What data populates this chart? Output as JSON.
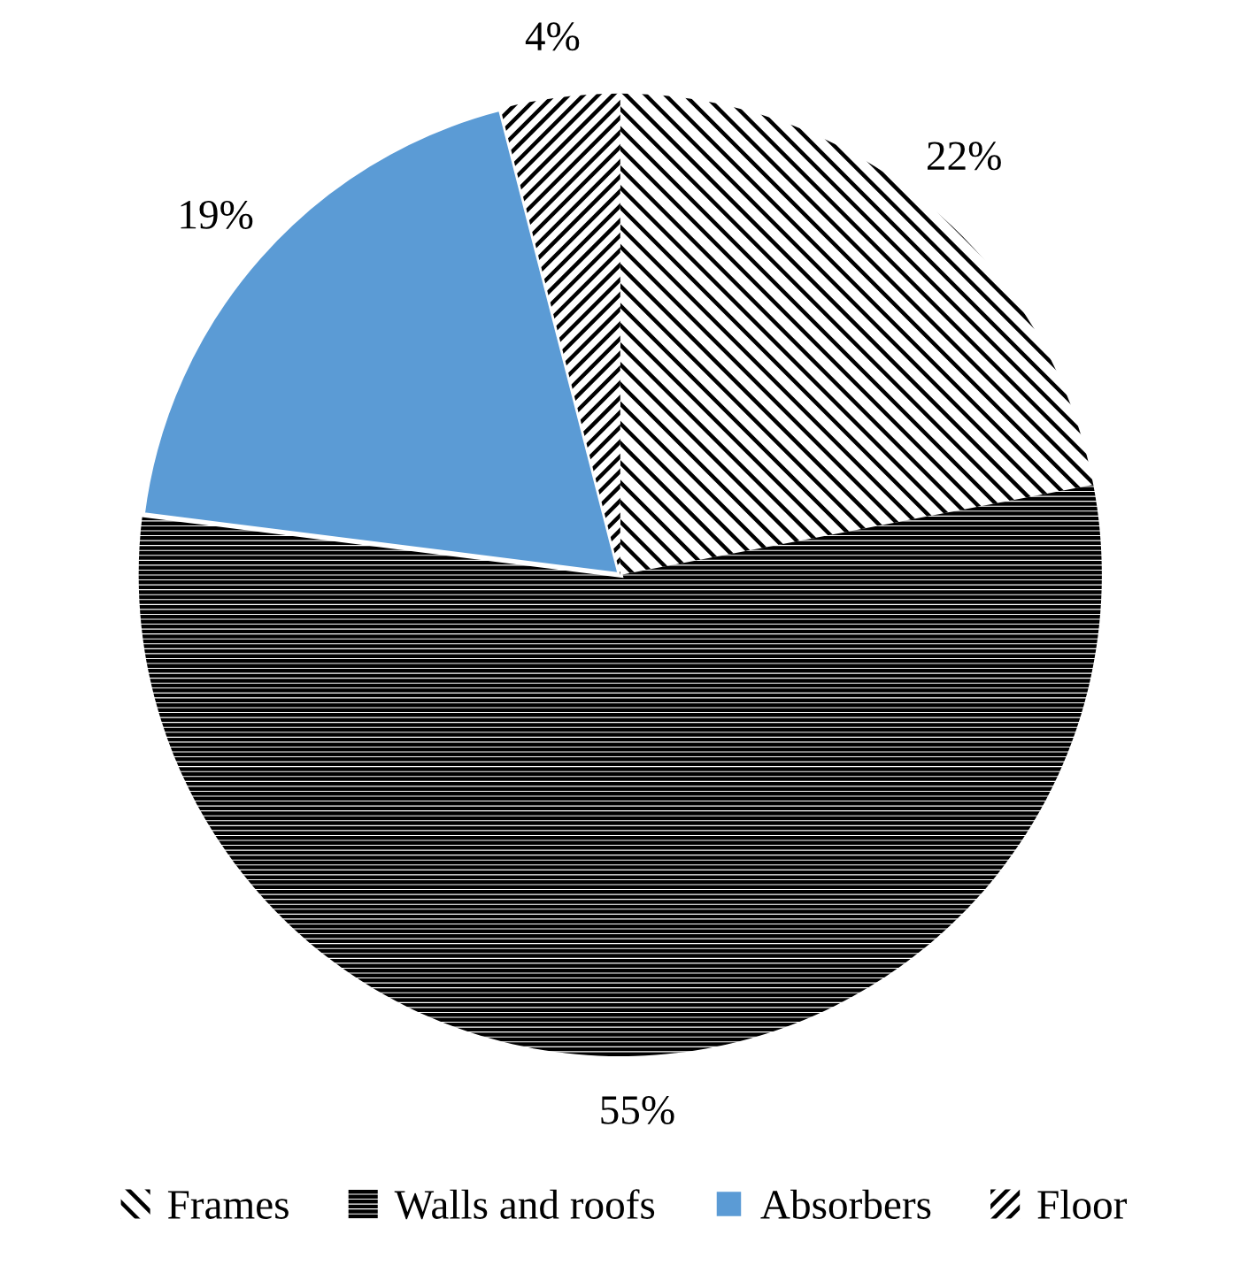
{
  "chart_data": {
    "type": "pie",
    "categories": [
      "Frames",
      "Walls and roofs",
      "Absorbers",
      "Floor"
    ],
    "values": [
      22,
      55,
      19,
      4
    ],
    "colors": [
      "#ffffff",
      "#ffffff",
      "#5b9bd5",
      "#ffffff"
    ],
    "value_labels": [
      "22%",
      "55%",
      "19%",
      "4%"
    ],
    "legend": "bottom"
  }
}
